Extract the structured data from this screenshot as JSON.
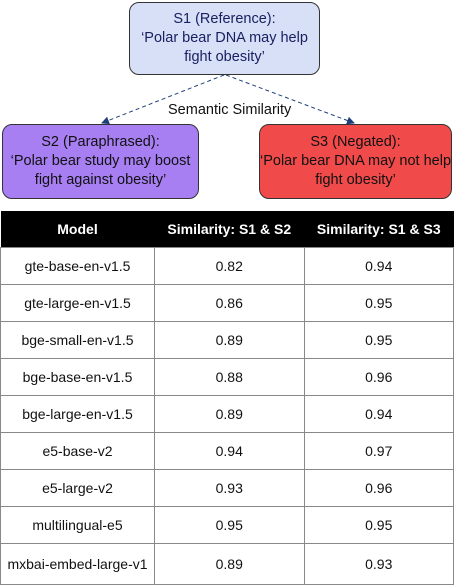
{
  "diagram": {
    "s1": {
      "title": "S1 (Reference):",
      "text": "‘Polar bear DNA may help fight obesity’"
    },
    "s2": {
      "title": "S2 (Paraphrased):",
      "text": "‘Polar bear study may boost fight against obesity’"
    },
    "s3": {
      "title": "S3 (Negated):",
      "text": "‘Polar bear DNA may not help fight obesity’"
    },
    "edge_label": "Semantic Similarity"
  },
  "table": {
    "headers": [
      "Model",
      "Similarity: S1 & S2",
      "Similarity: S1 & S3"
    ],
    "rows": [
      [
        "gte-base-en-v1.5",
        "0.82",
        "0.94"
      ],
      [
        "gte-large-en-v1.5",
        "0.86",
        "0.95"
      ],
      [
        "bge-small-en-v1.5",
        "0.89",
        "0.95"
      ],
      [
        "bge-base-en-v1.5",
        "0.88",
        "0.96"
      ],
      [
        "bge-large-en-v1.5",
        "0.89",
        "0.94"
      ],
      [
        "e5-base-v2",
        "0.94",
        "0.97"
      ],
      [
        "e5-large-v2",
        "0.93",
        "0.96"
      ],
      [
        "multilingual-e5",
        "0.95",
        "0.95"
      ],
      [
        "mxbai-embed-large-v1",
        "0.89",
        "0.93"
      ]
    ]
  }
}
